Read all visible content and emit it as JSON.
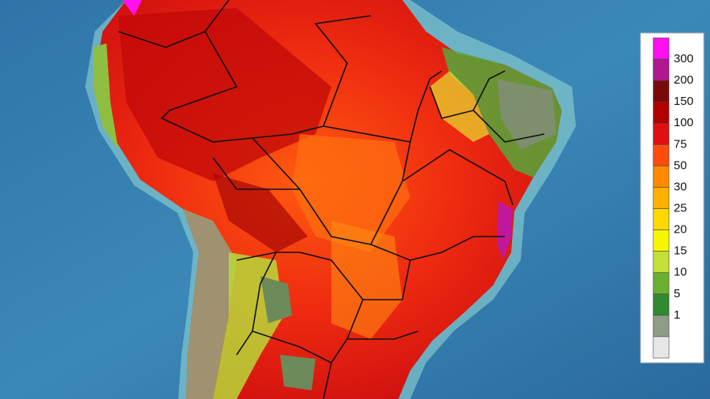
{
  "legend": {
    "labels": [
      300,
      200,
      150,
      100,
      75,
      50,
      30,
      25,
      20,
      15,
      10,
      5,
      1
    ],
    "colors": [
      "#ff10f0",
      "#b0188f",
      "#7a0a0a",
      "#b30000",
      "#e01010",
      "#ff4a10",
      "#ff8a00",
      "#ffb000",
      "#ffd800",
      "#f6f600",
      "#c4e03a",
      "#6ab030",
      "#2f8a30",
      "#8f9c86",
      "#e6e6e6"
    ]
  }
}
